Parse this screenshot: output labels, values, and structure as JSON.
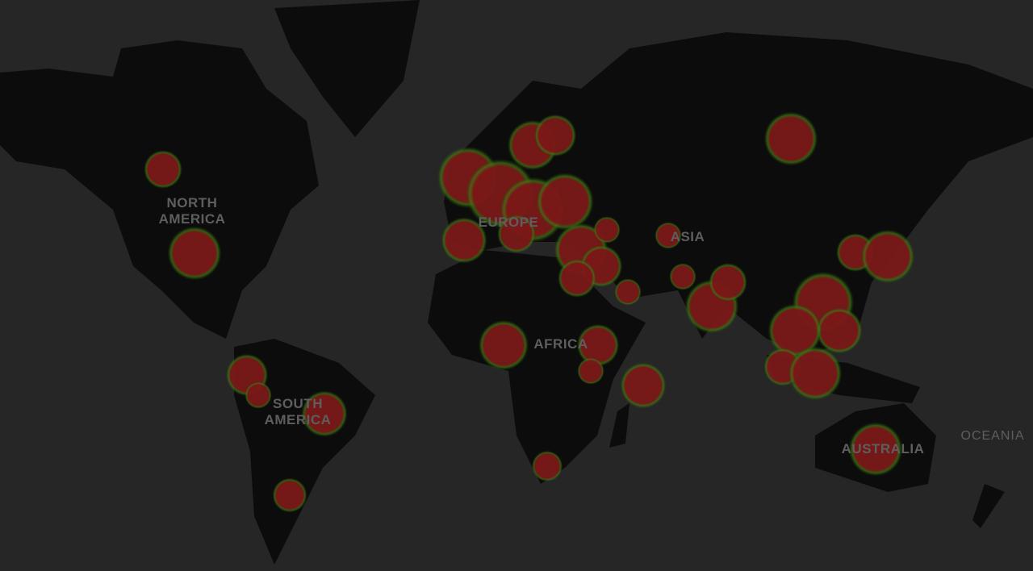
{
  "map": {
    "theme": "dark",
    "colors": {
      "background": "#262626",
      "land": "#0c0c0c",
      "heat_core": "#7a1818",
      "heat_edge": "#3f7a12"
    },
    "labels": {
      "north_america": "NORTH\nAMERICA",
      "europe": "EUROPE",
      "asia": "ASIA",
      "africa": "AFRICA",
      "south_america": "SOUTH\nAMERICA",
      "australia": "AUSTRALIA",
      "oceania": "OCEANIA"
    }
  }
}
